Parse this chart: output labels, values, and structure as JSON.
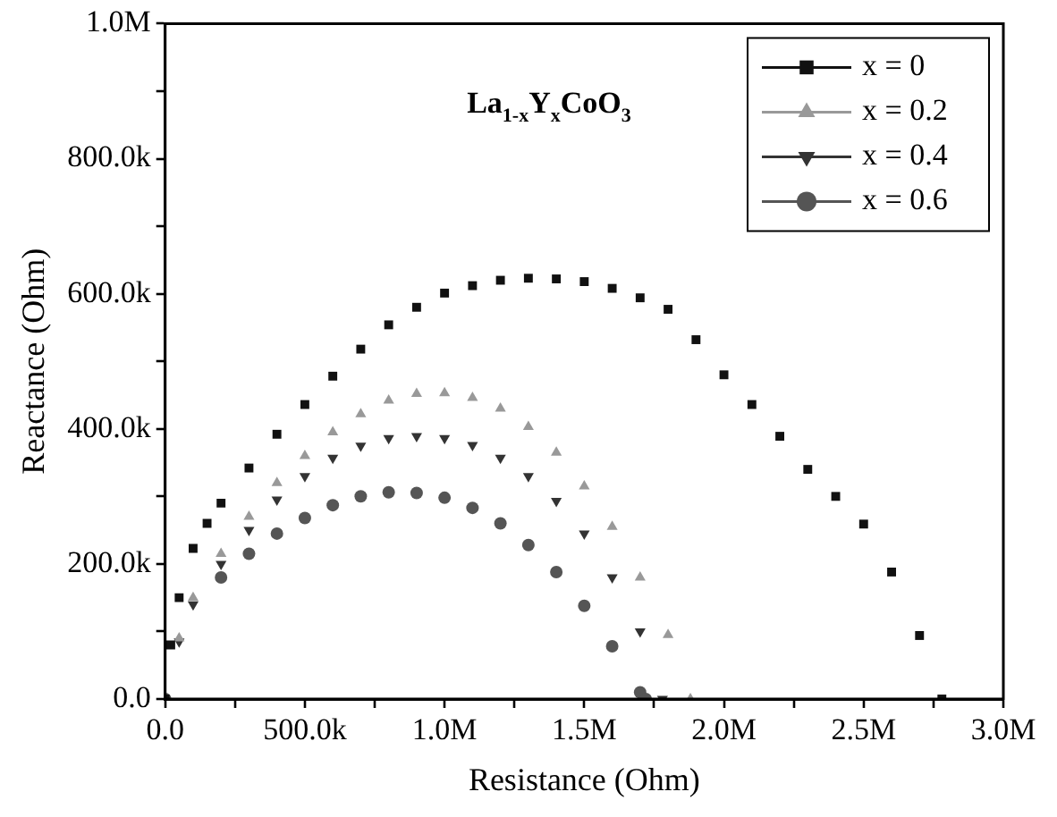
{
  "chart_data": {
    "type": "scatter",
    "title": "La$_{1-x}$Y$_{x}$CoO$_{3}$",
    "xlabel": "Resistance (Ohm)",
    "ylabel": "Reactance (Ohm)",
    "xlim": [
      0,
      3000000
    ],
    "ylim": [
      0,
      1000000
    ],
    "xticks": [
      {
        "value": 0,
        "label": "0.0"
      },
      {
        "value": 250000,
        "label": null
      },
      {
        "value": 500000,
        "label": "500.0k"
      },
      {
        "value": 750000,
        "label": null
      },
      {
        "value": 1000000,
        "label": "1.0M"
      },
      {
        "value": 1250000,
        "label": null
      },
      {
        "value": 1500000,
        "label": "1.5M"
      },
      {
        "value": 1750000,
        "label": null
      },
      {
        "value": 2000000,
        "label": "2.0M"
      },
      {
        "value": 2250000,
        "label": null
      },
      {
        "value": 2500000,
        "label": "2.5M"
      },
      {
        "value": 2750000,
        "label": null
      },
      {
        "value": 3000000,
        "label": "3.0M"
      }
    ],
    "yticks": [
      {
        "value": 0,
        "label": "0.0"
      },
      {
        "value": 100000,
        "label": null
      },
      {
        "value": 200000,
        "label": "200.0k"
      },
      {
        "value": 300000,
        "label": null
      },
      {
        "value": 400000,
        "label": "400.0k"
      },
      {
        "value": 500000,
        "label": null
      },
      {
        "value": 600000,
        "label": "600.0k"
      },
      {
        "value": 700000,
        "label": null
      },
      {
        "value": 800000,
        "label": "800.0k"
      },
      {
        "value": 900000,
        "label": null
      },
      {
        "value": 1000000,
        "label": "1.0M"
      }
    ],
    "grid": false,
    "legend": "top right",
    "series": [
      {
        "name": "x = 0",
        "color": "#111111",
        "marker": "square",
        "x": [
          0,
          20000,
          50000,
          100000,
          150000,
          200000,
          300000,
          400000,
          500000,
          600000,
          700000,
          800000,
          900000,
          1000000,
          1100000,
          1200000,
          1300000,
          1400000,
          1500000,
          1600000,
          1700000,
          1800000,
          1900000,
          2000000,
          2100000,
          2200000,
          2300000,
          2400000,
          2500000,
          2600000,
          2700000,
          2780000
        ],
        "values": [
          0,
          80000,
          150000,
          223000,
          260000,
          290000,
          342000,
          392000,
          436000,
          478000,
          518000,
          554000,
          580000,
          601000,
          612000,
          620000,
          623000,
          622000,
          618000,
          608000,
          594000,
          577000,
          532000,
          480000,
          436000,
          389000,
          340000,
          300000,
          259000,
          188000,
          94000,
          0
        ]
      },
      {
        "name": "x = 0.2",
        "color": "#999999",
        "marker": "triangle",
        "x": [
          50000,
          100000,
          200000,
          300000,
          400000,
          500000,
          600000,
          700000,
          800000,
          900000,
          1000000,
          1100000,
          1200000,
          1300000,
          1400000,
          1500000,
          1600000,
          1700000,
          1800000,
          1880000
        ],
        "values": [
          90000,
          150000,
          215000,
          270000,
          320000,
          360000,
          395000,
          422000,
          442000,
          452000,
          453000,
          446000,
          430000,
          403000,
          365000,
          315000,
          255000,
          180000,
          95000,
          0
        ]
      },
      {
        "name": "x = 0.4",
        "color": "#333333",
        "marker": "triangle-down",
        "x": [
          50000,
          100000,
          200000,
          300000,
          400000,
          500000,
          600000,
          700000,
          800000,
          900000,
          1000000,
          1100000,
          1200000,
          1300000,
          1400000,
          1500000,
          1600000,
          1700000,
          1780000
        ],
        "values": [
          85000,
          140000,
          200000,
          250000,
          295000,
          330000,
          357000,
          375000,
          386000,
          389000,
          386000,
          376000,
          357000,
          330000,
          293000,
          245000,
          180000,
          100000,
          0
        ]
      },
      {
        "name": "x = 0.6",
        "color": "#555555",
        "marker": "circle",
        "x": [
          0,
          50000,
          100000,
          200000,
          300000,
          400000,
          500000,
          600000,
          700000,
          800000,
          900000,
          1000000,
          1100000,
          1200000,
          1300000,
          1400000,
          1500000,
          1600000,
          1700000,
          1720000
        ],
        "values": [
          0,
          null,
          null,
          180000,
          215000,
          245000,
          268000,
          287000,
          300000,
          306000,
          305000,
          298000,
          283000,
          260000,
          228000,
          188000,
          138000,
          78000,
          10000,
          0
        ]
      }
    ]
  }
}
